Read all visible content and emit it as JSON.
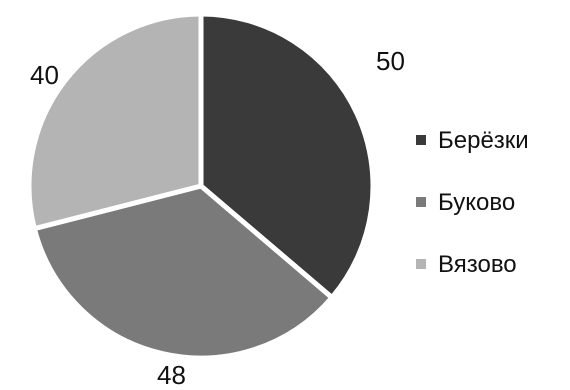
{
  "chart_data": {
    "type": "pie",
    "slices": [
      {
        "label": "Берёзки",
        "value": 50,
        "color": "#3a3a3a"
      },
      {
        "label": "Буково",
        "value": 48,
        "color": "#7a7a7a"
      },
      {
        "label": "Вязово",
        "value": 40,
        "color": "#b4b4b4"
      }
    ],
    "legend_position": "right"
  }
}
